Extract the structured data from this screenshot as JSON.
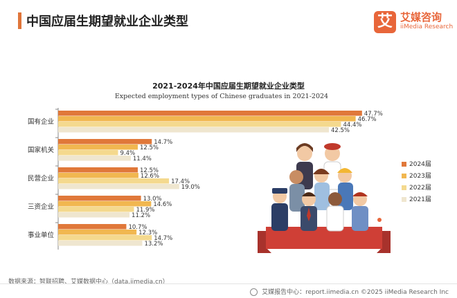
{
  "header": {
    "title": "中国应届生期望就业企业类型",
    "logo_mark": "艾",
    "logo_cn": "艾媒咨询",
    "logo_en": "iiMedia Research"
  },
  "chart_data": {
    "type": "bar",
    "orientation": "horizontal",
    "title": "2021-2024年中国应届生期望就业企业类型",
    "subtitle": "Expected employment types of Chinese graduates in 2021-2024",
    "categories": [
      "国有企业",
      "国家机关",
      "民营企业",
      "三资企业",
      "事业单位"
    ],
    "series": [
      {
        "name": "2024届",
        "color": "#e0783a",
        "values": [
          47.7,
          14.7,
          12.5,
          13.0,
          10.7
        ]
      },
      {
        "name": "2023届",
        "color": "#f1b750",
        "values": [
          46.7,
          12.5,
          12.6,
          14.6,
          12.3
        ]
      },
      {
        "name": "2022届",
        "color": "#f4d98e",
        "values": [
          44.4,
          9.4,
          17.4,
          11.9,
          14.7
        ]
      },
      {
        "name": "2021届",
        "color": "#efe6cf",
        "values": [
          42.5,
          11.4,
          19.0,
          11.2,
          13.2
        ]
      }
    ],
    "value_suffix": "%",
    "xlim": [
      0,
      50
    ],
    "legend_position": "right",
    "grid": false
  },
  "source": "数据来源：智联招聘、艾媒数据中心（data.iimedia.cn）",
  "footer": {
    "icon": "globe-icon",
    "text": "艾媒报告中心：report.iimedia.cn    ©2025  iiMedia Research  Inc"
  }
}
